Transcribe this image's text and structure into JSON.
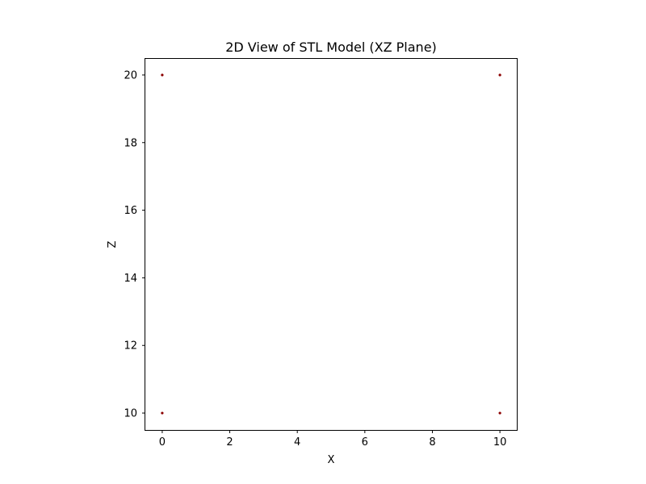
{
  "chart_data": {
    "type": "scatter",
    "title": "2D View of STL Model (XZ Plane)",
    "xlabel": "X",
    "ylabel": "Z",
    "xlim": [
      -0.5,
      10.5
    ],
    "ylim": [
      9.5,
      20.5
    ],
    "x_ticks": [
      0,
      2,
      4,
      6,
      8,
      10
    ],
    "y_ticks": [
      10,
      12,
      14,
      16,
      18,
      20
    ],
    "x_tick_labels": [
      "0",
      "2",
      "4",
      "6",
      "8",
      "10"
    ],
    "y_tick_labels": [
      "10",
      "12",
      "14",
      "16",
      "18",
      "20"
    ],
    "grid": false,
    "legend": "none",
    "marker_color": "#8b0000",
    "points": [
      {
        "x": 0,
        "y": 20
      },
      {
        "x": 10,
        "y": 20
      },
      {
        "x": 0,
        "y": 10
      },
      {
        "x": 10,
        "y": 10
      }
    ]
  }
}
